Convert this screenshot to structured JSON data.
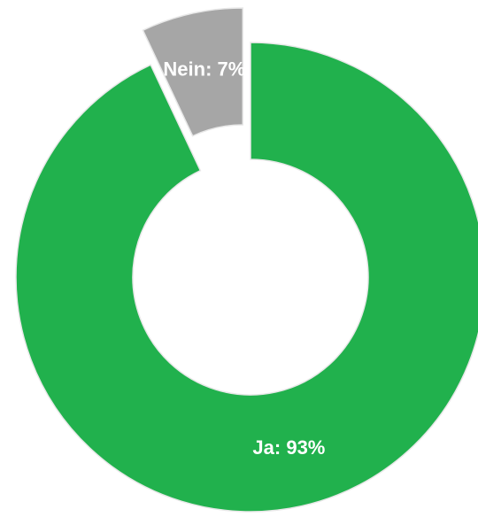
{
  "chart_data": {
    "type": "donut",
    "categories": [
      "Ja",
      "Nein"
    ],
    "values": [
      93,
      7
    ],
    "value_labels": [
      "Ja: 93%",
      "Nein: 7%"
    ],
    "colors": [
      "#21b14d",
      "#a6a6a6"
    ],
    "label_colors": [
      "#ffffff",
      "#ffffff"
    ]
  }
}
